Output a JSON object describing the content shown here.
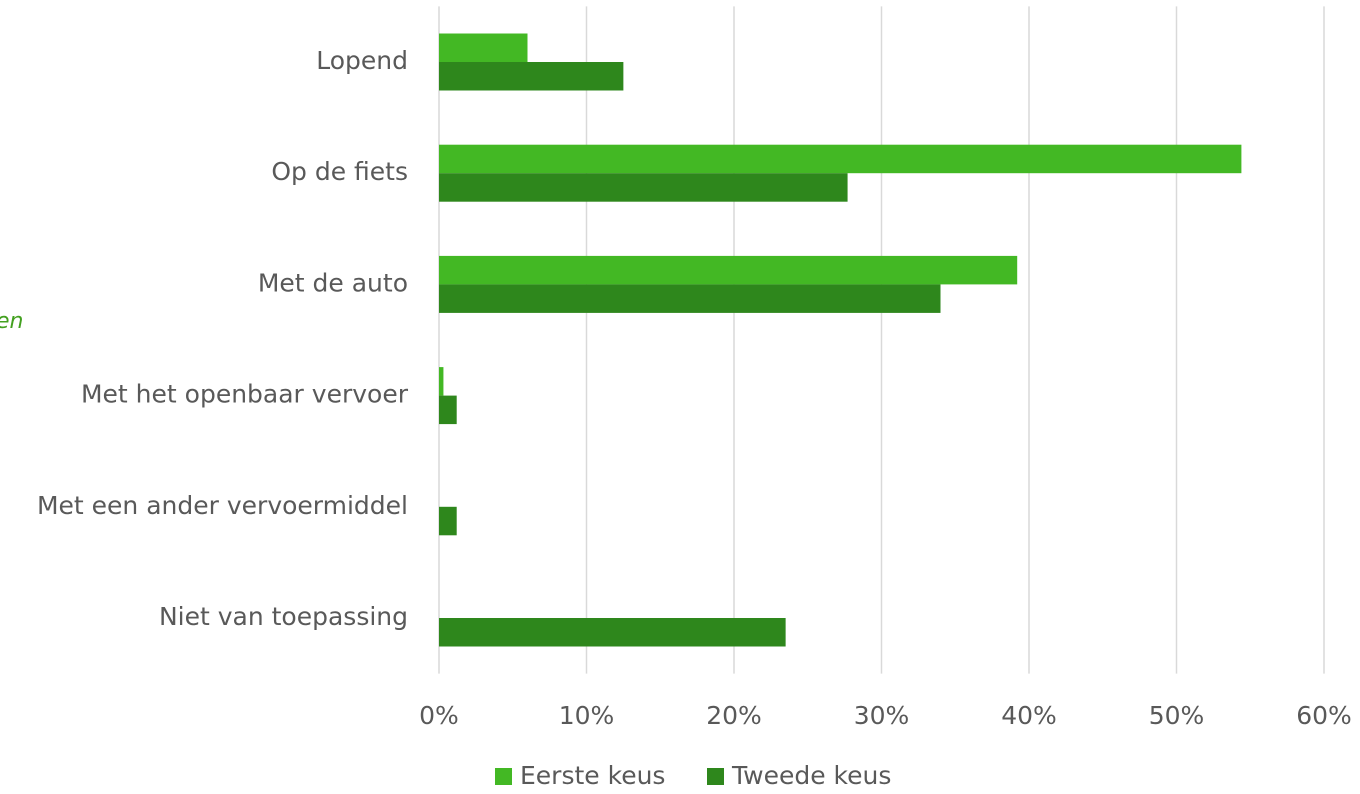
{
  "chart_data": {
    "type": "hbar",
    "annotation": "en",
    "categories": [
      "Lopend",
      "Op de fiets",
      "Met de auto",
      "Met het openbaar vervoer",
      "Met een ander vervoermiddel",
      "Niet van toepassing"
    ],
    "series": [
      {
        "name": "Eerste keus",
        "color": "#43b824",
        "values": [
          6,
          54.4,
          39.2,
          0.3,
          0,
          0
        ]
      },
      {
        "name": "Tweede keus",
        "color": "#2e871c",
        "values": [
          12.5,
          27.7,
          34.0,
          1.2,
          1.2,
          23.5
        ]
      }
    ],
    "xlim": [
      0,
      60
    ],
    "xticks": [
      {
        "value": 0,
        "label": "0%"
      },
      {
        "value": 10,
        "label": "10%"
      },
      {
        "value": 20,
        "label": "20%"
      },
      {
        "value": 30,
        "label": "30%"
      },
      {
        "value": 40,
        "label": "40%"
      },
      {
        "value": 50,
        "label": "50%"
      },
      {
        "value": 60,
        "label": "60%"
      }
    ],
    "grid": true,
    "legend": "bottom"
  }
}
